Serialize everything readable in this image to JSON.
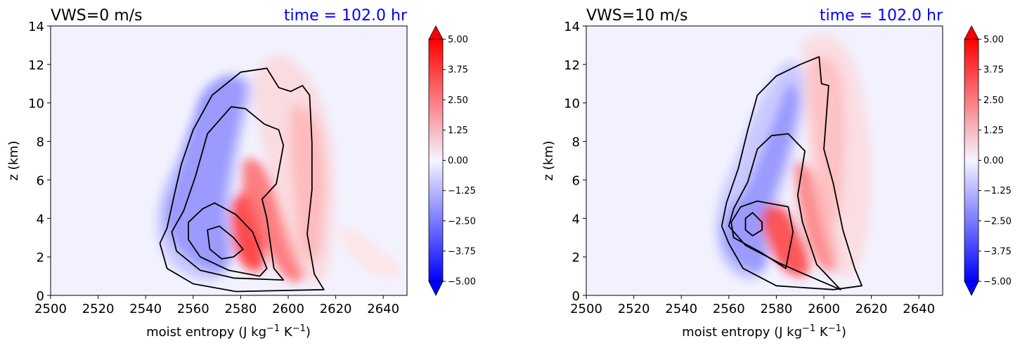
{
  "colors": {
    "positive": "#ff0000",
    "negative": "#0000ff",
    "title_time": "#0000ff",
    "contour": "#000000",
    "background": "#f2f2ff"
  },
  "chart_data": [
    {
      "type": "contour",
      "title_left": "VWS=0 m/s",
      "title_right": "time = 102.0 hr",
      "xlabel": "moist entropy (J kg",
      "xlabel_unit1": "−1",
      "xlabel_mid": " K",
      "xlabel_unit2": "−1",
      "xlabel_end": ")",
      "ylabel": "z (km)",
      "xlim": [
        2500,
        2650
      ],
      "ylim": [
        0,
        14
      ],
      "xticks": [
        "2500",
        "2520",
        "2540",
        "2560",
        "2580",
        "2600",
        "2620",
        "2640"
      ],
      "yticks": [
        "0",
        "2",
        "4",
        "6",
        "8",
        "10",
        "12",
        "14"
      ],
      "colorbar": {
        "ticks": [
          "5.00",
          "3.75",
          "2.50",
          "1.25",
          "0.00",
          "−1.25",
          "−2.50",
          "−3.75",
          "−5.00"
        ],
        "range": [
          -5,
          5
        ],
        "extend": "both"
      },
      "contours": [
        [
          [
            2571,
            3.6
          ],
          [
            2577,
            3.0
          ],
          [
            2581,
            2.4
          ],
          [
            2577,
            2.0
          ],
          [
            2572,
            1.9
          ],
          [
            2567,
            2.4
          ],
          [
            2566,
            3.4
          ],
          [
            2571,
            3.6
          ]
        ],
        [
          [
            2569,
            4.8
          ],
          [
            2578,
            4.2
          ],
          [
            2585,
            3.3
          ],
          [
            2591,
            1.4
          ],
          [
            2588,
            1.0
          ],
          [
            2575,
            1.3
          ],
          [
            2563,
            2.0
          ],
          [
            2558,
            2.9
          ],
          [
            2558,
            3.8
          ],
          [
            2564,
            4.5
          ],
          [
            2569,
            4.8
          ]
        ],
        [
          [
            2576,
            9.8
          ],
          [
            2582,
            9.7
          ],
          [
            2590,
            8.9
          ],
          [
            2596,
            8.6
          ],
          [
            2598,
            7.8
          ],
          [
            2595,
            5.8
          ],
          [
            2589,
            5.0
          ],
          [
            2591,
            4.0
          ],
          [
            2594,
            1.4
          ],
          [
            2598,
            0.8
          ],
          [
            2577,
            0.9
          ],
          [
            2563,
            1.3
          ],
          [
            2553,
            2.3
          ],
          [
            2551,
            3.3
          ],
          [
            2556,
            4.4
          ],
          [
            2561,
            6.2
          ],
          [
            2566,
            8.4
          ],
          [
            2576,
            9.8
          ]
        ],
        [
          [
            2591,
            11.8
          ],
          [
            2596,
            10.8
          ],
          [
            2601,
            10.6
          ],
          [
            2606,
            10.9
          ],
          [
            2609,
            10.4
          ],
          [
            2610,
            7.9
          ],
          [
            2610,
            5.5
          ],
          [
            2608,
            3.2
          ],
          [
            2611,
            1.1
          ],
          [
            2615,
            0.3
          ],
          [
            2578,
            0.2
          ],
          [
            2560,
            0.6
          ],
          [
            2549,
            1.4
          ],
          [
            2546,
            2.7
          ],
          [
            2549,
            3.5
          ],
          [
            2552,
            5.2
          ],
          [
            2555,
            6.8
          ],
          [
            2560,
            8.6
          ],
          [
            2568,
            10.4
          ],
          [
            2580,
            11.6
          ],
          [
            2591,
            11.8
          ]
        ]
      ]
    },
    {
      "type": "contour",
      "title_left": "VWS=10 m/s",
      "title_right": "time = 102.0 hr",
      "xlabel": "moist entropy (J kg",
      "xlabel_unit1": "−1",
      "xlabel_mid": " K",
      "xlabel_unit2": "−1",
      "xlabel_end": ")",
      "ylabel": "z (km)",
      "xlim": [
        2500,
        2650
      ],
      "ylim": [
        0,
        14
      ],
      "xticks": [
        "2500",
        "2520",
        "2540",
        "2560",
        "2580",
        "2600",
        "2620",
        "2640"
      ],
      "yticks": [
        "0",
        "2",
        "4",
        "6",
        "8",
        "10",
        "12",
        "14"
      ],
      "colorbar": {
        "ticks": [
          "5.00",
          "3.75",
          "2.50",
          "1.25",
          "0.00",
          "−1.25",
          "−2.50",
          "−3.75",
          "−5.00"
        ],
        "range": [
          -5,
          5
        ],
        "extend": "both"
      },
      "contours": [
        [
          [
            2570,
            4.3
          ],
          [
            2574,
            3.8
          ],
          [
            2574,
            3.4
          ],
          [
            2570,
            3.1
          ],
          [
            2567,
            3.4
          ],
          [
            2567,
            4.0
          ],
          [
            2570,
            4.3
          ]
        ],
        [
          [
            2572,
            4.9
          ],
          [
            2585,
            4.6
          ],
          [
            2587,
            3.3
          ],
          [
            2584,
            1.4
          ],
          [
            2574,
            2.2
          ],
          [
            2562,
            3.0
          ],
          [
            2561,
            3.8
          ],
          [
            2565,
            4.6
          ],
          [
            2572,
            4.9
          ]
        ],
        [
          [
            2585,
            8.4
          ],
          [
            2592,
            7.5
          ],
          [
            2589,
            5.2
          ],
          [
            2591,
            3.8
          ],
          [
            2597,
            1.6
          ],
          [
            2607,
            0.3
          ],
          [
            2590,
            1.2
          ],
          [
            2581,
            1.7
          ],
          [
            2567,
            2.6
          ],
          [
            2560,
            3.6
          ],
          [
            2562,
            4.5
          ],
          [
            2568,
            5.9
          ],
          [
            2572,
            7.6
          ],
          [
            2578,
            8.3
          ],
          [
            2585,
            8.4
          ]
        ],
        [
          [
            2598,
            12.4
          ],
          [
            2599,
            11.0
          ],
          [
            2602,
            10.9
          ],
          [
            2600,
            7.6
          ],
          [
            2604,
            5.8
          ],
          [
            2608,
            3.4
          ],
          [
            2613,
            1.4
          ],
          [
            2616,
            0.5
          ],
          [
            2604,
            0.3
          ],
          [
            2580,
            0.5
          ],
          [
            2566,
            1.4
          ],
          [
            2560,
            2.7
          ],
          [
            2557,
            3.6
          ],
          [
            2559,
            4.8
          ],
          [
            2564,
            6.6
          ],
          [
            2568,
            8.6
          ],
          [
            2572,
            10.4
          ],
          [
            2580,
            11.4
          ],
          [
            2590,
            12.0
          ],
          [
            2598,
            12.4
          ]
        ]
      ]
    }
  ]
}
